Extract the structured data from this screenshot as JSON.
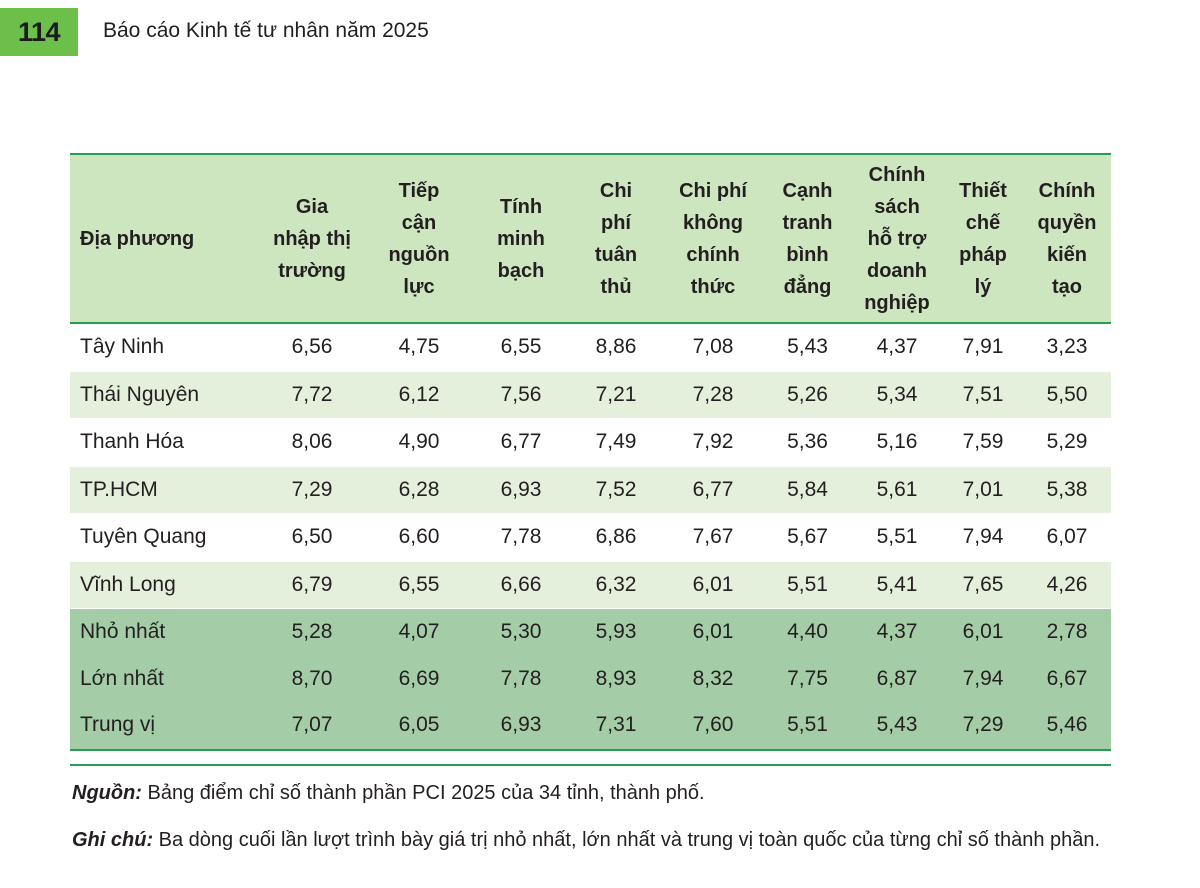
{
  "header": {
    "page_number": "114",
    "running_title": "Báo cáo Kinh tế tư nhân năm 2025"
  },
  "table": {
    "columns": [
      [
        "Địa phương"
      ],
      [
        "Gia",
        "nhập thị",
        "trường"
      ],
      [
        "Tiếp",
        "cận",
        "nguồn",
        "lực"
      ],
      [
        "Tính",
        "minh",
        "bạch"
      ],
      [
        "Chi",
        "phí",
        "tuân",
        "thủ"
      ],
      [
        "Chi phí",
        "không",
        "chính",
        "thức"
      ],
      [
        "Cạnh",
        "tranh",
        "bình",
        "đẳng"
      ],
      [
        "Chính",
        "sách",
        "hỗ trợ",
        "doanh",
        "nghiệp"
      ],
      [
        "Thiết",
        "chế",
        "pháp",
        "lý"
      ],
      [
        "Chính",
        "quyền",
        "kiến",
        "tạo"
      ]
    ],
    "rows": [
      {
        "region": "Tây Ninh",
        "values": [
          "6,56",
          "4,75",
          "6,55",
          "8,86",
          "7,08",
          "5,43",
          "4,37",
          "7,91",
          "3,23"
        ]
      },
      {
        "region": "Thái Nguyên",
        "values": [
          "7,72",
          "6,12",
          "7,56",
          "7,21",
          "7,28",
          "5,26",
          "5,34",
          "7,51",
          "5,50"
        ]
      },
      {
        "region": "Thanh Hóa",
        "values": [
          "8,06",
          "4,90",
          "6,77",
          "7,49",
          "7,92",
          "5,36",
          "5,16",
          "7,59",
          "5,29"
        ]
      },
      {
        "region": "TP.HCM",
        "values": [
          "7,29",
          "6,28",
          "6,93",
          "7,52",
          "6,77",
          "5,84",
          "5,61",
          "7,01",
          "5,38"
        ]
      },
      {
        "region": "Tuyên Quang",
        "values": [
          "6,50",
          "6,60",
          "7,78",
          "6,86",
          "7,67",
          "5,67",
          "5,51",
          "7,94",
          "6,07"
        ]
      },
      {
        "region": "Vĩnh Long",
        "values": [
          "6,79",
          "6,55",
          "6,66",
          "6,32",
          "6,01",
          "5,51",
          "5,41",
          "7,65",
          "4,26"
        ]
      }
    ],
    "summary_rows": [
      {
        "region": "Nhỏ nhất",
        "values": [
          "5,28",
          "4,07",
          "5,30",
          "5,93",
          "6,01",
          "4,40",
          "4,37",
          "6,01",
          "2,78"
        ]
      },
      {
        "region": "Lớn nhất",
        "values": [
          "8,70",
          "6,69",
          "7,78",
          "8,93",
          "8,32",
          "7,75",
          "6,87",
          "7,94",
          "6,67"
        ]
      },
      {
        "region": "Trung vị",
        "values": [
          "7,07",
          "6,05",
          "6,93",
          "7,31",
          "7,60",
          "5,51",
          "5,43",
          "7,29",
          "5,46"
        ]
      }
    ]
  },
  "notes": {
    "source_label": "Nguồn:",
    "source_text": " Bảng điểm chỉ số thành phần PCI 2025 của 34 tỉnh, thành phố.",
    "remark_label": "Ghi chú:",
    "remark_text": " Ba dòng cuối lần lượt trình bày giá trị nhỏ nhất, lớn nhất và trung vị toàn quốc của từng chỉ số thành phần."
  },
  "colors": {
    "page_tab": "#6cbf4a",
    "header_fill": "#cde6bf",
    "row_tint": "#e4f0dc",
    "summary_fill": "#a4cda7",
    "rule": "#2a9b52"
  }
}
